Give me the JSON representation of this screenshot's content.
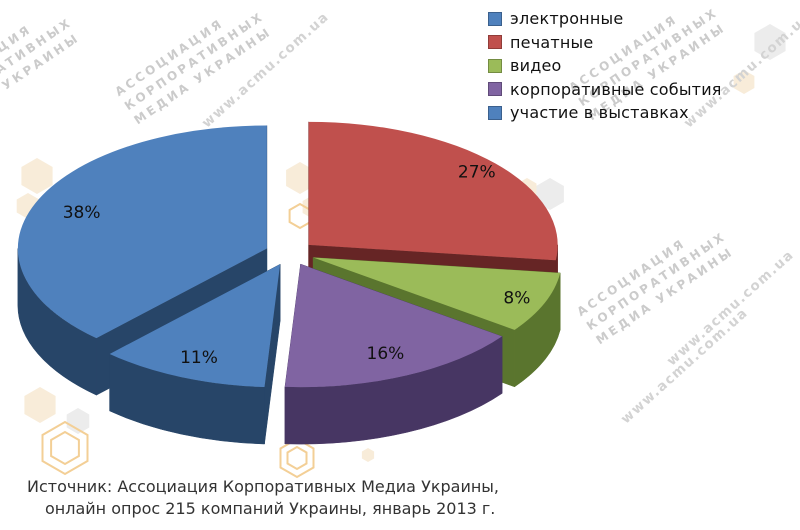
{
  "chart_data": {
    "type": "pie",
    "style": "3d-exploded",
    "categories": [
      "электронные",
      "печатные",
      "видео",
      "корпоративные события",
      "участие в выставках"
    ],
    "values": [
      38,
      27,
      8,
      16,
      11
    ],
    "value_unit": "%",
    "data_labels": [
      "38%",
      "27%",
      "8%",
      "16%",
      "11%"
    ],
    "colors": [
      "#4F81BD",
      "#C0504D",
      "#9BBB59",
      "#8064A2",
      "#4F81BD"
    ],
    "side_colors": [
      "#274568",
      "#662525",
      "#5A752E",
      "#473663",
      "#274568"
    ],
    "start_angle_deg": 223.2,
    "legend_position": "top-right",
    "label_color": "#111111"
  },
  "source_note": {
    "line1": "Источник: Ассоциация Корпоративных Медиа Украины,",
    "line2": "онлайн опрос 215 компаний Украины, январь 2013 г."
  },
  "watermark": {
    "org_line1": "АССОЦИАЦИЯ",
    "org_line2": "КОРПОРАТИВНЫХ",
    "org_line3": "МЕДИА УКРАИНЫ",
    "url": "www.acmu.com.ua",
    "text_color": "#cbcbcb",
    "hex_beige": "#f8ecd9",
    "hex_gray": "#ececec",
    "hex_orange": "#f3cf96"
  }
}
